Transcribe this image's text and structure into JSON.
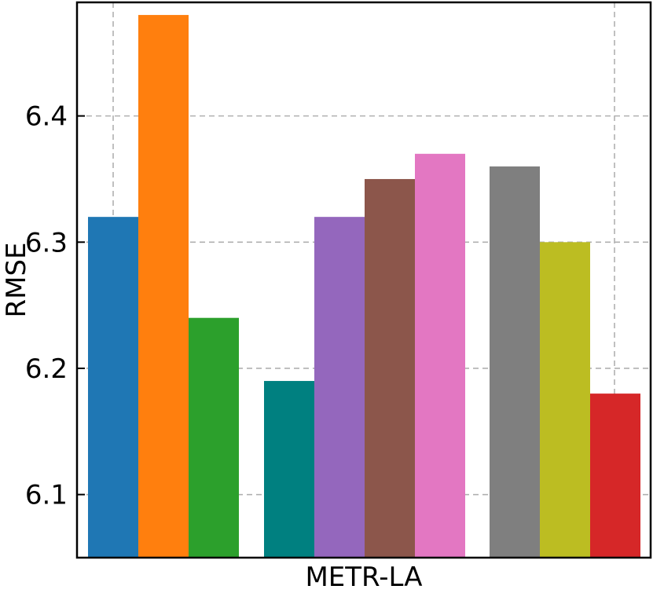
{
  "chart_data": {
    "type": "bar",
    "title": "",
    "xlabel": "METR-LA",
    "ylabel": "RMSE",
    "ylim": [
      6.05,
      6.49
    ],
    "yticks": [
      "6.1",
      "6.2",
      "6.3",
      "6.4"
    ],
    "ytick_values": [
      6.1,
      6.2,
      6.3,
      6.4
    ],
    "grid": true,
    "legend": "none",
    "groups": [
      {
        "bars": [
          {
            "value": 6.32,
            "color": "#1f77b4"
          },
          {
            "value": 6.48,
            "color": "#ff7f0e"
          },
          {
            "value": 6.24,
            "color": "#2ca02c"
          }
        ]
      },
      {
        "bars": [
          {
            "value": 6.19,
            "color": "#008080"
          },
          {
            "value": 6.32,
            "color": "#9467bd"
          },
          {
            "value": 6.35,
            "color": "#8c564b"
          },
          {
            "value": 6.37,
            "color": "#e377c2"
          }
        ]
      },
      {
        "bars": [
          {
            "value": 6.36,
            "color": "#7f7f7f"
          },
          {
            "value": 6.3,
            "color": "#bcbd22"
          },
          {
            "value": 6.18,
            "color": "#d62728"
          }
        ]
      }
    ]
  }
}
